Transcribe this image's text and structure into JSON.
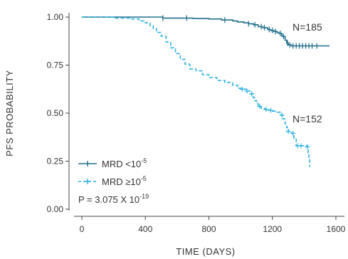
{
  "chart_data": {
    "type": "line",
    "xlabel": "TIME (DAYS)",
    "ylabel": "PFS PROBABILITY",
    "xlim": [
      0,
      1600
    ],
    "ylim": [
      0,
      1.0
    ],
    "x_ticks": [
      "0",
      "400",
      "800",
      "1200",
      "1600"
    ],
    "y_ticks": [
      "0.00",
      "0.25",
      "0.50",
      "0.75",
      "1.00"
    ],
    "grid": false,
    "legend_position": "bottom-left",
    "series": [
      {
        "name": "MRD <10",
        "name_superscript": "-5",
        "color": "#1f6e8c",
        "line_style": "solid",
        "n_label": "N=185",
        "points": [
          [
            0,
            1.0
          ],
          [
            500,
            1.0
          ],
          [
            510,
            0.995
          ],
          [
            700,
            0.993
          ],
          [
            800,
            0.99
          ],
          [
            880,
            0.985
          ],
          [
            950,
            0.98
          ],
          [
            980,
            0.975
          ],
          [
            1020,
            0.97
          ],
          [
            1050,
            0.965
          ],
          [
            1080,
            0.96
          ],
          [
            1110,
            0.95
          ],
          [
            1140,
            0.945
          ],
          [
            1170,
            0.935
          ],
          [
            1190,
            0.93
          ],
          [
            1210,
            0.925
          ],
          [
            1230,
            0.92
          ],
          [
            1240,
            0.915
          ],
          [
            1260,
            0.9
          ],
          [
            1280,
            0.88
          ],
          [
            1290,
            0.865
          ],
          [
            1300,
            0.855
          ],
          [
            1320,
            0.85
          ],
          [
            1560,
            0.85
          ]
        ],
        "censor_x": [
          510,
          660,
          900,
          1050,
          1090,
          1130,
          1150,
          1180,
          1200,
          1220,
          1250,
          1270,
          1295,
          1310,
          1330,
          1350,
          1370,
          1390,
          1410,
          1430,
          1450,
          1480
        ]
      },
      {
        "name": "MRD ≥10",
        "name_superscript": "-5",
        "color": "#2bb0df",
        "line_style": "dashed",
        "n_label": "N=152",
        "points": [
          [
            0,
            1.0
          ],
          [
            180,
            1.0
          ],
          [
            200,
            0.995
          ],
          [
            310,
            0.99
          ],
          [
            360,
            0.98
          ],
          [
            400,
            0.97
          ],
          [
            430,
            0.955
          ],
          [
            450,
            0.94
          ],
          [
            470,
            0.92
          ],
          [
            500,
            0.9
          ],
          [
            530,
            0.87
          ],
          [
            560,
            0.84
          ],
          [
            590,
            0.81
          ],
          [
            620,
            0.78
          ],
          [
            650,
            0.755
          ],
          [
            680,
            0.73
          ],
          [
            720,
            0.72
          ],
          [
            760,
            0.7
          ],
          [
            800,
            0.685
          ],
          [
            850,
            0.67
          ],
          [
            900,
            0.66
          ],
          [
            950,
            0.645
          ],
          [
            980,
            0.63
          ],
          [
            1000,
            0.625
          ],
          [
            1040,
            0.615
          ],
          [
            1060,
            0.6
          ],
          [
            1080,
            0.58
          ],
          [
            1090,
            0.565
          ],
          [
            1100,
            0.55
          ],
          [
            1110,
            0.535
          ],
          [
            1130,
            0.525
          ],
          [
            1150,
            0.52
          ],
          [
            1170,
            0.515
          ],
          [
            1200,
            0.51
          ],
          [
            1230,
            0.505
          ],
          [
            1250,
            0.49
          ],
          [
            1265,
            0.47
          ],
          [
            1280,
            0.445
          ],
          [
            1290,
            0.425
          ],
          [
            1300,
            0.405
          ],
          [
            1320,
            0.395
          ],
          [
            1335,
            0.37
          ],
          [
            1350,
            0.33
          ],
          [
            1400,
            0.33
          ],
          [
            1420,
            0.325
          ],
          [
            1425,
            0.295
          ],
          [
            1430,
            0.265
          ],
          [
            1435,
            0.22
          ]
        ],
        "censor_x": [
          1010,
          1040,
          1070,
          1120,
          1160,
          1190,
          1260,
          1300,
          1330,
          1360,
          1380,
          1420
        ]
      }
    ],
    "annotation": {
      "prefix": "P = 3.075 X 10",
      "superscript": "-19"
    }
  }
}
